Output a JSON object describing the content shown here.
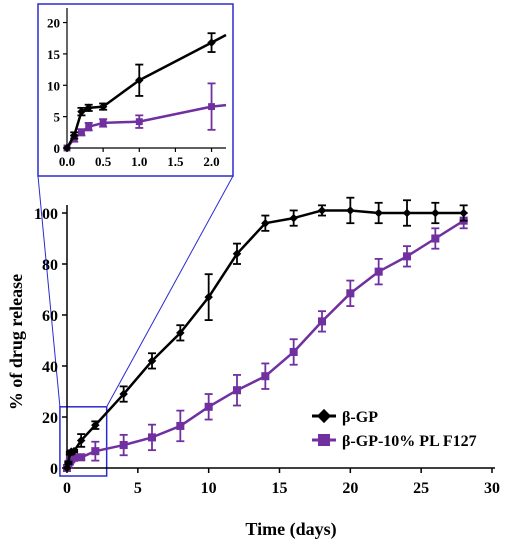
{
  "chart_data": {
    "type": "line",
    "xlabel": "Time (days)",
    "ylabel": "% of drug release",
    "xlim": [
      0,
      30
    ],
    "ylim": [
      0,
      100
    ],
    "xticks": [
      "0",
      "5",
      "10",
      "15",
      "20",
      "25",
      "30"
    ],
    "yticks": [
      "0",
      "20",
      "40",
      "60",
      "80",
      "100"
    ],
    "legend_position": "bottom-right",
    "series": [
      {
        "name": "β-GP",
        "color": "#000000",
        "marker": "diamond",
        "x": [
          0,
          0.1,
          0.2,
          0.3,
          0.5,
          1,
          2,
          4,
          6,
          8,
          10,
          12,
          14,
          16,
          18,
          20,
          22,
          24,
          26,
          28
        ],
        "y": [
          0,
          2,
          5.8,
          6.4,
          6.6,
          10.8,
          16.8,
          29,
          42,
          53,
          67,
          84,
          96,
          98,
          101,
          101,
          100,
          100,
          100,
          100
        ],
        "err": [
          0,
          0.5,
          0.6,
          0.5,
          0.5,
          2.5,
          1.5,
          3,
          3,
          3,
          9,
          4,
          3,
          3,
          2,
          5,
          4,
          5,
          4,
          3
        ]
      },
      {
        "name": "β-GP-10% PL F127",
        "color": "#7030a0",
        "marker": "square",
        "x": [
          0,
          0.1,
          0.2,
          0.3,
          0.5,
          1,
          2,
          4,
          6,
          8,
          10,
          12,
          14,
          16,
          18,
          20,
          22,
          24,
          26,
          28
        ],
        "y": [
          0,
          1.5,
          2.5,
          3.4,
          4,
          4.2,
          6.6,
          9,
          12,
          16.5,
          24,
          30.5,
          36,
          45.5,
          57.5,
          68.5,
          77,
          83,
          90,
          97
        ],
        "err": [
          0,
          0.5,
          0.5,
          0.6,
          0.6,
          1,
          3.7,
          4,
          5,
          6,
          5,
          6,
          5,
          5,
          4,
          5,
          5,
          4,
          4,
          3
        ]
      }
    ],
    "inset": {
      "xlim": [
        0,
        2.2
      ],
      "ylim": [
        0,
        22
      ],
      "xticks": [
        "0.0",
        "0.5",
        "1.0",
        "1.5",
        "2.0"
      ],
      "yticks": [
        "0",
        "5",
        "10",
        "15",
        "20"
      ],
      "x_values": [
        0,
        0.5,
        1.0,
        1.5,
        2.0
      ],
      "y_values": [
        0,
        5,
        10,
        15,
        20
      ],
      "zoom_xrange": [
        -0.5,
        2.8
      ],
      "zoom_yrange": [
        0,
        24
      ],
      "frame_color": "#2b2bd1"
    }
  }
}
